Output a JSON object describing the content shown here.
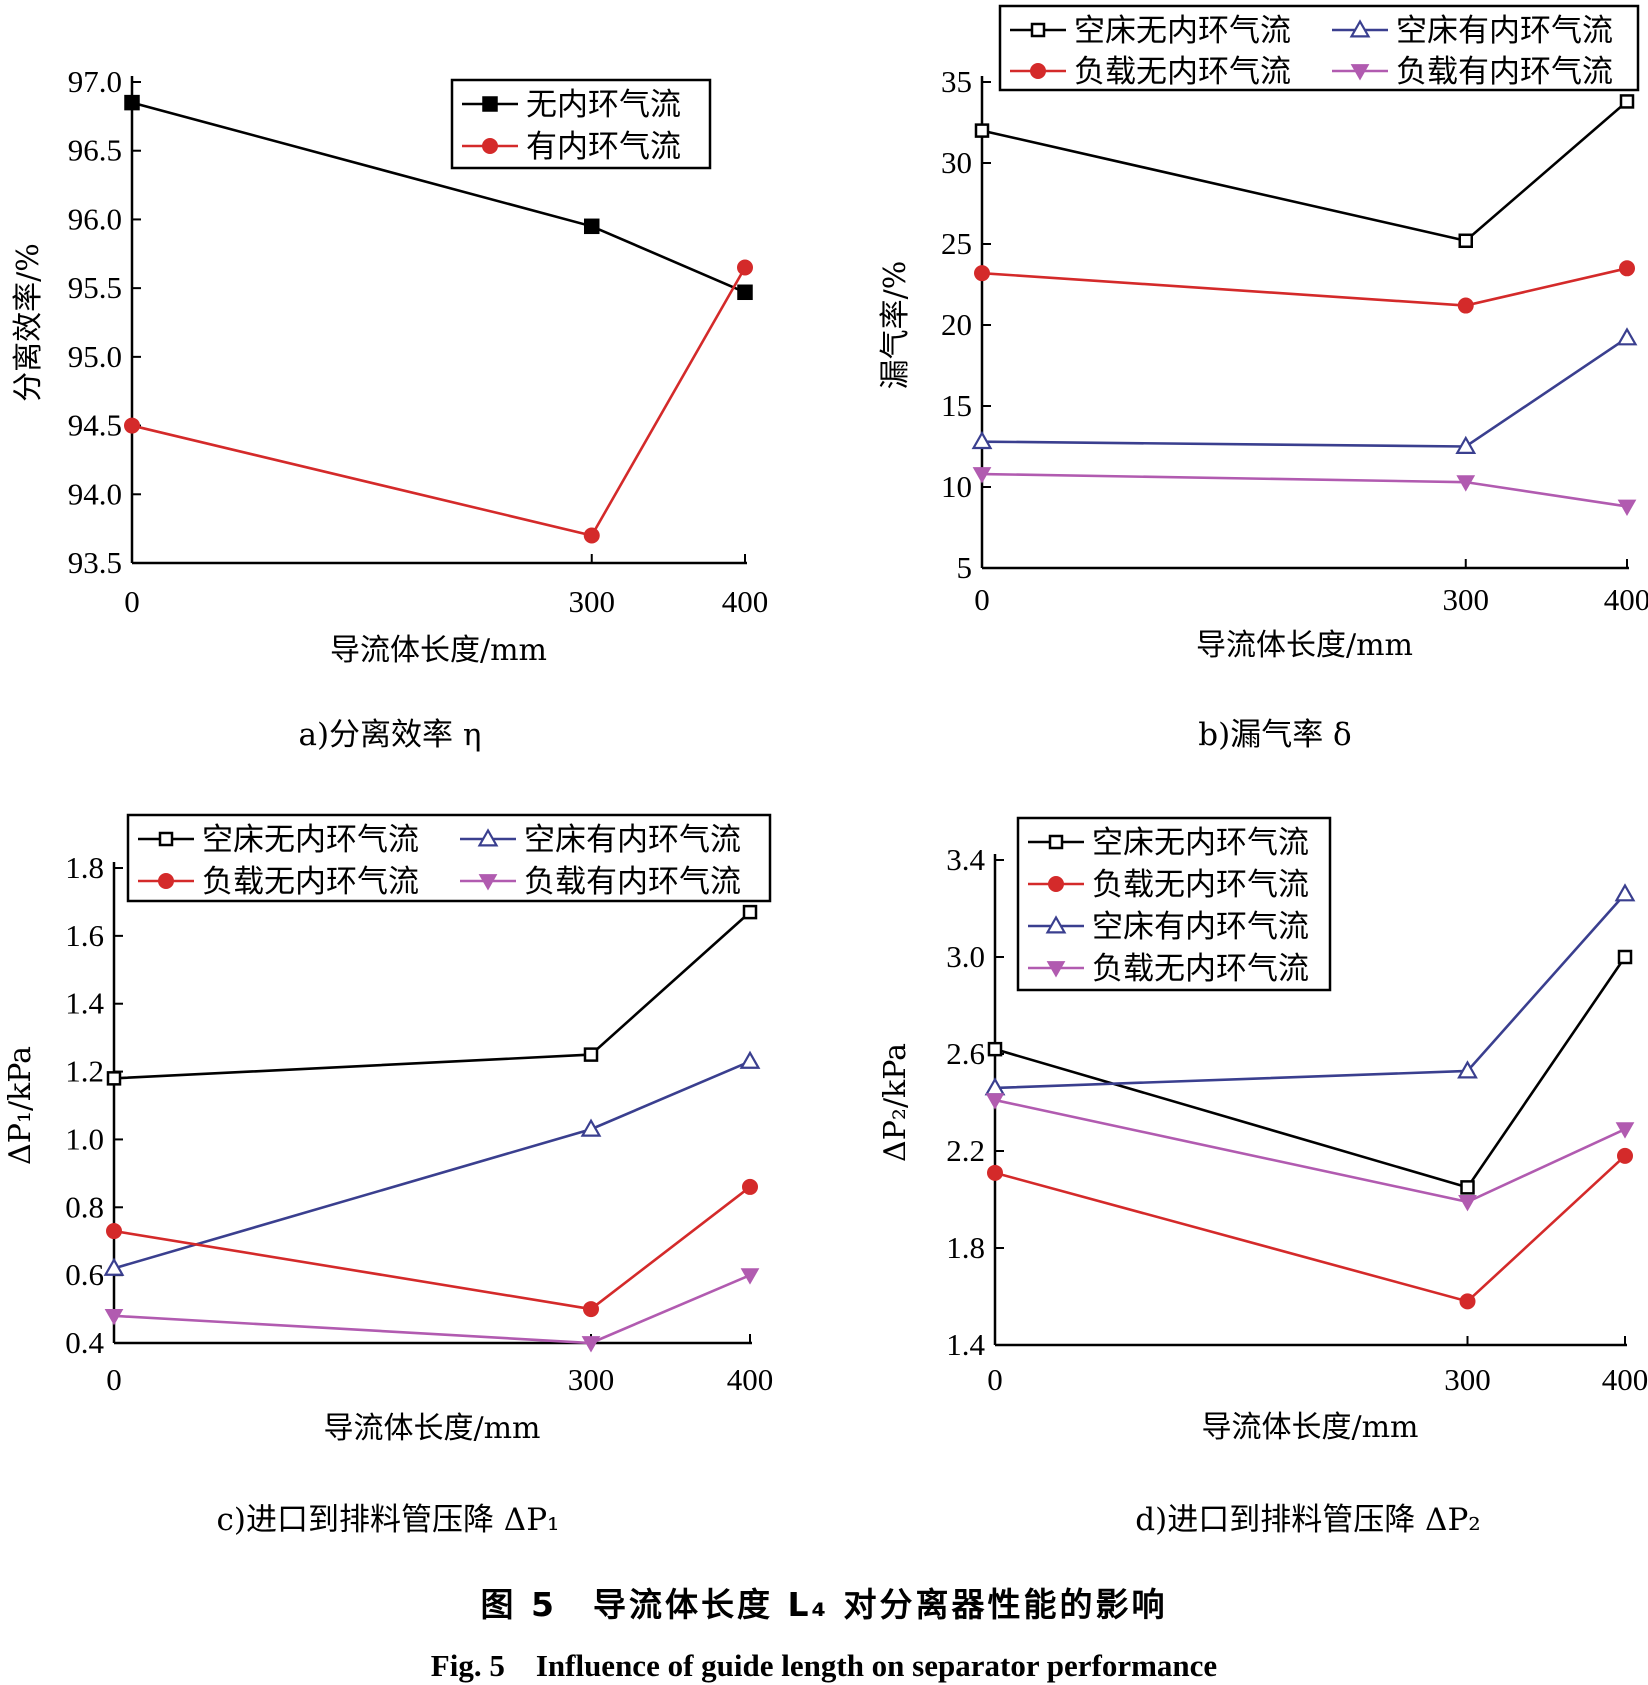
{
  "figure": {
    "caption_zh": "图 5　导流体长度 L₄ 对分离器性能的影响",
    "caption_en": "Fig. 5　Influence of guide length on separator performance"
  },
  "colors": {
    "black": "#000000",
    "red": "#d42a2a",
    "blue": "#3a3f8f",
    "purple": "#b15bb0"
  },
  "chart_data": [
    {
      "id": "a",
      "type": "line",
      "caption": "a)分离效率 η",
      "xlabel": "导流体长度/mm",
      "ylabel": "分离效率/%",
      "x": [
        0,
        300,
        400
      ],
      "ylim": [
        93.5,
        97.0
      ],
      "yticks": [
        "93.5",
        "94.0",
        "94.5",
        "95.0",
        "95.5",
        "96.0",
        "96.5",
        "97.0"
      ],
      "legend_placement": "top-right",
      "series": [
        {
          "name": "无内环气流",
          "values": [
            96.85,
            95.95,
            95.47
          ],
          "color": "black",
          "marker": "square-filled"
        },
        {
          "name": "有内环气流",
          "values": [
            94.5,
            93.7,
            95.65
          ],
          "color": "red",
          "marker": "circle-filled"
        }
      ]
    },
    {
      "id": "b",
      "type": "line",
      "caption": "b)漏气率 δ",
      "xlabel": "导流体长度/mm",
      "ylabel": "漏气率/%",
      "x": [
        0,
        300,
        400
      ],
      "ylim": [
        5,
        35
      ],
      "yticks": [
        "5",
        "10",
        "15",
        "20",
        "25",
        "30",
        "35"
      ],
      "legend_placement": "top",
      "series": [
        {
          "name": "空床无内环气流",
          "values": [
            32.0,
            25.2,
            33.8
          ],
          "color": "black",
          "marker": "square-open"
        },
        {
          "name": "空床有内环气流",
          "values": [
            12.8,
            12.5,
            19.2
          ],
          "color": "blue",
          "marker": "triangle-open"
        },
        {
          "name": "负载无内环气流",
          "values": [
            23.2,
            21.2,
            23.5
          ],
          "color": "red",
          "marker": "circle-filled"
        },
        {
          "name": "负载有内环气流",
          "values": [
            10.8,
            10.3,
            8.8
          ],
          "color": "purple",
          "marker": "triangle-down-filled"
        }
      ]
    },
    {
      "id": "c",
      "type": "line",
      "caption": "c)进口到排料管压降 ΔP₁",
      "xlabel": "导流体长度/mm",
      "ylabel": "ΔP₁/kPa",
      "x": [
        0,
        300,
        400
      ],
      "ylim": [
        0.4,
        1.8
      ],
      "yticks": [
        "0.4",
        "0.6",
        "0.8",
        "1.0",
        "1.2",
        "1.4",
        "1.6",
        "1.8"
      ],
      "legend_placement": "top",
      "series": [
        {
          "name": "空床无内环气流",
          "values": [
            1.18,
            1.25,
            1.67
          ],
          "color": "black",
          "marker": "square-open"
        },
        {
          "name": "空床有内环气流",
          "values": [
            0.62,
            1.03,
            1.23
          ],
          "color": "blue",
          "marker": "triangle-open"
        },
        {
          "name": "负载无内环气流",
          "values": [
            0.73,
            0.5,
            0.86
          ],
          "color": "red",
          "marker": "circle-filled"
        },
        {
          "name": "负载有内环气流",
          "values": [
            0.48,
            0.4,
            0.6
          ],
          "color": "purple",
          "marker": "triangle-down-filled"
        }
      ]
    },
    {
      "id": "d",
      "type": "line",
      "caption": "d)进口到排料管压降 ΔP₂",
      "xlabel": "导流体长度/mm",
      "ylabel": "ΔP₂/kPa",
      "x": [
        0,
        300,
        400
      ],
      "ylim": [
        1.4,
        3.4
      ],
      "yticks": [
        "1.4",
        "1.8",
        "2.2",
        "2.6",
        "3.0",
        "3.4"
      ],
      "legend_placement": "top-left",
      "series": [
        {
          "name": "空床无内环气流",
          "values": [
            2.62,
            2.05,
            3.0
          ],
          "color": "black",
          "marker": "square-open"
        },
        {
          "name": "负载无内环气流",
          "values": [
            2.11,
            1.58,
            2.18
          ],
          "color": "red",
          "marker": "circle-filled"
        },
        {
          "name": "空床有内环气流",
          "values": [
            2.46,
            2.53,
            3.26
          ],
          "color": "blue",
          "marker": "triangle-open"
        },
        {
          "name": "负载无内环气流",
          "values": [
            2.41,
            1.99,
            2.29
          ],
          "color": "purple",
          "marker": "triangle-down-filled"
        }
      ]
    }
  ]
}
